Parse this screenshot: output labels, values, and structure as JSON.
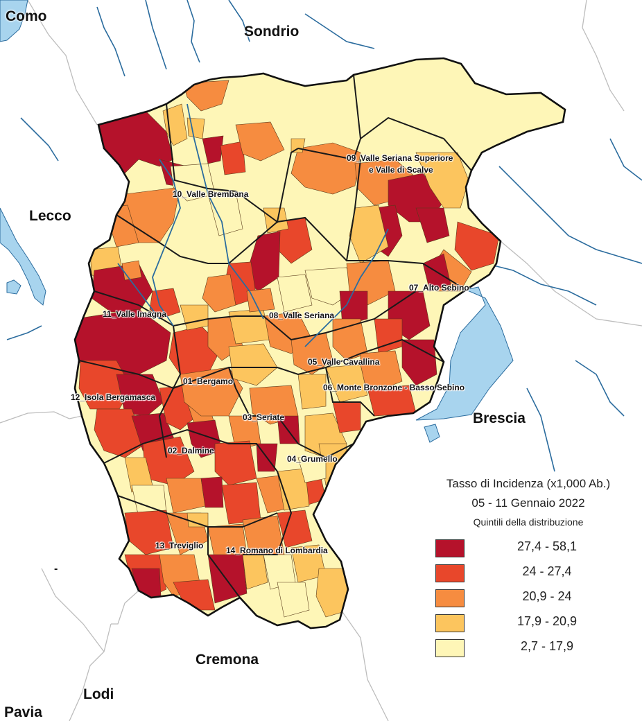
{
  "provinces": [
    "Como",
    "Sondrio",
    "Lecco",
    "Brescia",
    "Cremona",
    "Lodi",
    "Pavia",
    "-"
  ],
  "districts": [
    "01_Bergamo",
    "02_Dalmine",
    "03_Seriate",
    "04_Grumello",
    "05_Valle Cavallina",
    "06_Monte Bronzone - Basso Sebino",
    "07_Alto Sebino",
    "08_Valle Seriana",
    "09_Valle Seriana Superiore",
    "e Valle di Scalve",
    "10_Valle Brembana",
    "11_Valle Imagna",
    "12_Isola Bergamasca",
    "13_Treviglio",
    "14_Romano di Lombardia"
  ],
  "legend": {
    "title_line1": "Tasso di Incidenza (x1,000 Ab.)",
    "title_line2": "05 - 11 Gennaio 2022",
    "subtitle": "Quintili della distribuzione",
    "classes": [
      {
        "label": "27,4 - 58,1",
        "color": "#b5122b"
      },
      {
        "label": "24 - 27,4",
        "color": "#e8472b"
      },
      {
        "label": "20,9 - 24",
        "color": "#f68c40"
      },
      {
        "label": "17,9 - 20,9",
        "color": "#fcc55e"
      },
      {
        "label": "2,7 - 17,9",
        "color": "#fef6b7"
      }
    ]
  },
  "colors": {
    "water": "#a8d4ee",
    "river": "#2b6c9e",
    "border": "#222222",
    "outer_border": "#b5b5b5"
  }
}
